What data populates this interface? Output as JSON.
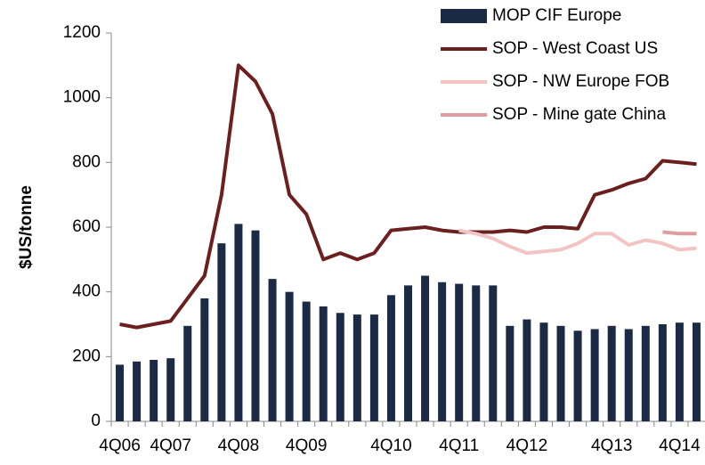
{
  "chart_data": {
    "type": "bar-line",
    "y_label": "$US/tonne",
    "categories": [
      "4Q06",
      null,
      null,
      "4Q07",
      null,
      null,
      null,
      "4Q08",
      null,
      null,
      null,
      "4Q09",
      null,
      null,
      null,
      null,
      "4Q10",
      null,
      null,
      null,
      "4Q11",
      null,
      null,
      null,
      "4Q12",
      null,
      null,
      null,
      null,
      "4Q13",
      null,
      null,
      null,
      "4Q14",
      null
    ],
    "series": [
      {
        "name": "MOP CIF Europe",
        "kind": "bar",
        "color": "#1b2a45",
        "values": [
          175,
          185,
          190,
          195,
          295,
          380,
          550,
          610,
          590,
          440,
          400,
          370,
          355,
          335,
          330,
          330,
          390,
          420,
          450,
          430,
          425,
          420,
          420,
          295,
          315,
          305,
          295,
          280,
          285,
          295,
          285,
          295,
          300,
          305,
          305
        ]
      },
      {
        "name": "SOP - West Coast US",
        "kind": "line",
        "color": "#6b1f1f",
        "values": [
          300,
          290,
          300,
          310,
          380,
          450,
          700,
          1100,
          1050,
          950,
          700,
          640,
          500,
          520,
          500,
          520,
          590,
          595,
          600,
          590,
          585,
          585,
          585,
          590,
          585,
          600,
          600,
          595,
          700,
          715,
          735,
          750,
          805,
          800,
          795
        ]
      },
      {
        "name": "SOP - NW Europe FOB",
        "kind": "line",
        "color": "#f2c4c4",
        "values": [
          null,
          null,
          null,
          null,
          null,
          null,
          null,
          null,
          null,
          null,
          null,
          null,
          null,
          null,
          null,
          null,
          null,
          null,
          null,
          null,
          590,
          580,
          565,
          540,
          520,
          525,
          530,
          550,
          580,
          580,
          545,
          560,
          550,
          530,
          535
        ]
      },
      {
        "name": "SOP - Mine gate China",
        "kind": "line",
        "color": "#e09c9c",
        "values": [
          null,
          null,
          null,
          null,
          null,
          null,
          null,
          null,
          null,
          null,
          null,
          null,
          null,
          null,
          null,
          null,
          null,
          null,
          null,
          null,
          null,
          null,
          null,
          null,
          null,
          null,
          null,
          null,
          null,
          null,
          null,
          null,
          585,
          580,
          580
        ]
      }
    ],
    "ylim": [
      0,
      1200
    ],
    "yticks": [
      0,
      200,
      400,
      600,
      800,
      1000,
      1200
    ],
    "legend": "top-right"
  }
}
